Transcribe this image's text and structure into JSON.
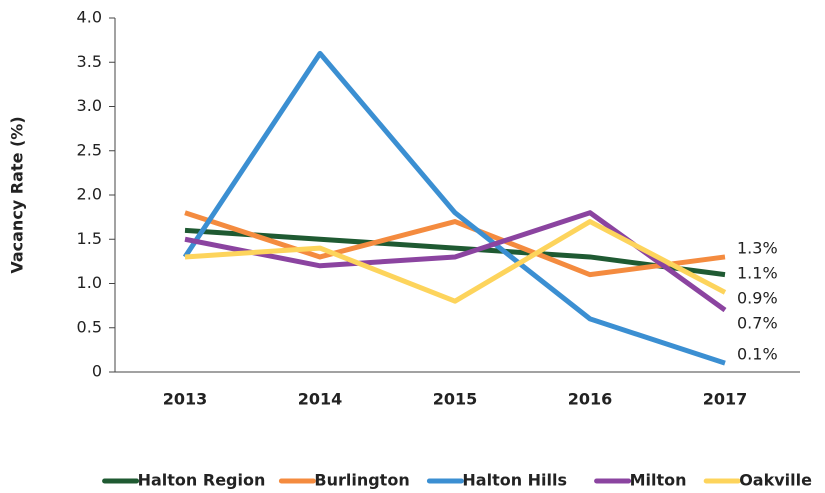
{
  "chart_data": {
    "type": "line",
    "y_label": "Vacancy Rate (%)",
    "categories": [
      "2013",
      "2014",
      "2015",
      "2016",
      "2017"
    ],
    "ylim": [
      0,
      4
    ],
    "yticks": [
      0,
      0.5,
      {
        "value": 1,
        "label": "1.0"
      },
      1.5,
      {
        "value": 2,
        "label": "2.0"
      },
      2.5,
      {
        "value": 3,
        "label": "3.0"
      },
      3.5,
      {
        "value": 4,
        "label": "4.0"
      }
    ],
    "grid": false,
    "legend": "bottom",
    "series": [
      {
        "name": "Halton Region",
        "color": "#1f5a32",
        "values": [
          1.6,
          1.5,
          1.4,
          1.3,
          1.1
        ],
        "value_labels": [
          null,
          null,
          null,
          null,
          "1.1%"
        ]
      },
      {
        "name": "Burlington",
        "color": "#f48b3f",
        "values": [
          1.8,
          1.3,
          1.7,
          1.1,
          1.3
        ],
        "value_labels": [
          null,
          null,
          null,
          null,
          "1.3%"
        ]
      },
      {
        "name": "Halton Hills",
        "color": "#3b8fd2",
        "values": [
          1.3,
          3.6,
          1.8,
          0.6,
          0.1
        ],
        "value_labels": [
          null,
          null,
          null,
          null,
          "0.1%"
        ]
      },
      {
        "name": "Milton",
        "color": "#8b44a0",
        "values": [
          1.5,
          1.2,
          1.3,
          1.8,
          0.7
        ],
        "value_labels": [
          null,
          null,
          null,
          null,
          "0.7%"
        ]
      },
      {
        "name": "Oakville",
        "color": "#fdd45c",
        "values": [
          1.3,
          1.4,
          0.8,
          1.7,
          0.9
        ],
        "value_labels": [
          null,
          null,
          null,
          null,
          "0.9%"
        ]
      }
    ]
  }
}
